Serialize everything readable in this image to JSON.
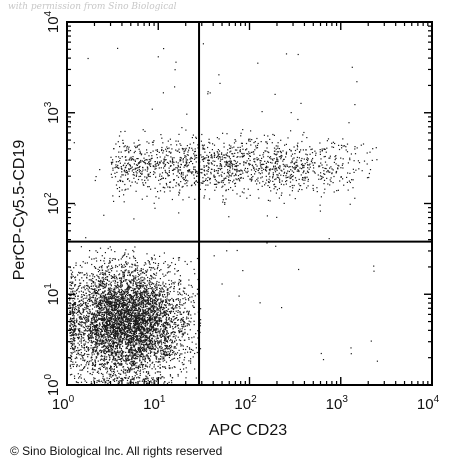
{
  "chart_data": {
    "type": "scatter",
    "xlabel": "APC CD23",
    "ylabel": "PerCP-Cy5.5-CD19",
    "x_scale": "log",
    "y_scale": "log",
    "xlim": [
      1,
      10000
    ],
    "ylim": [
      1,
      10000
    ],
    "x_ticks": [
      {
        "value": 1,
        "base": "10",
        "exp": "0"
      },
      {
        "value": 10,
        "base": "10",
        "exp": "1"
      },
      {
        "value": 100,
        "base": "10",
        "exp": "2"
      },
      {
        "value": 1000,
        "base": "10",
        "exp": "3"
      },
      {
        "value": 10000,
        "base": "10",
        "exp": "4"
      }
    ],
    "y_ticks": [
      {
        "value": 1,
        "base": "10",
        "exp": "0"
      },
      {
        "value": 10,
        "base": "10",
        "exp": "1"
      },
      {
        "value": 100,
        "base": "10",
        "exp": "2"
      },
      {
        "value": 1000,
        "base": "10",
        "exp": "3"
      },
      {
        "value": 10000,
        "base": "10",
        "exp": "4"
      }
    ],
    "quadrant_gates": {
      "x": 28,
      "y": 38
    },
    "populations": [
      {
        "x_range": [
          1,
          25
        ],
        "y_range": [
          1,
          30
        ],
        "x_center": 4.5,
        "y_center": 5,
        "density": "very high"
      },
      {
        "x_range": [
          3,
          2500
        ],
        "y_range": [
          120,
          600
        ],
        "x_center": 100,
        "y_center": 260,
        "density": "medium"
      }
    ],
    "grid": false
  },
  "texts": {
    "watermark": "with permission from Sino Biological",
    "copyright": "© Sino Biological Inc. All rights reserved"
  },
  "colors": {
    "points": "#1a1a1a",
    "axes": "#000000",
    "gate_lines": "#000000"
  }
}
